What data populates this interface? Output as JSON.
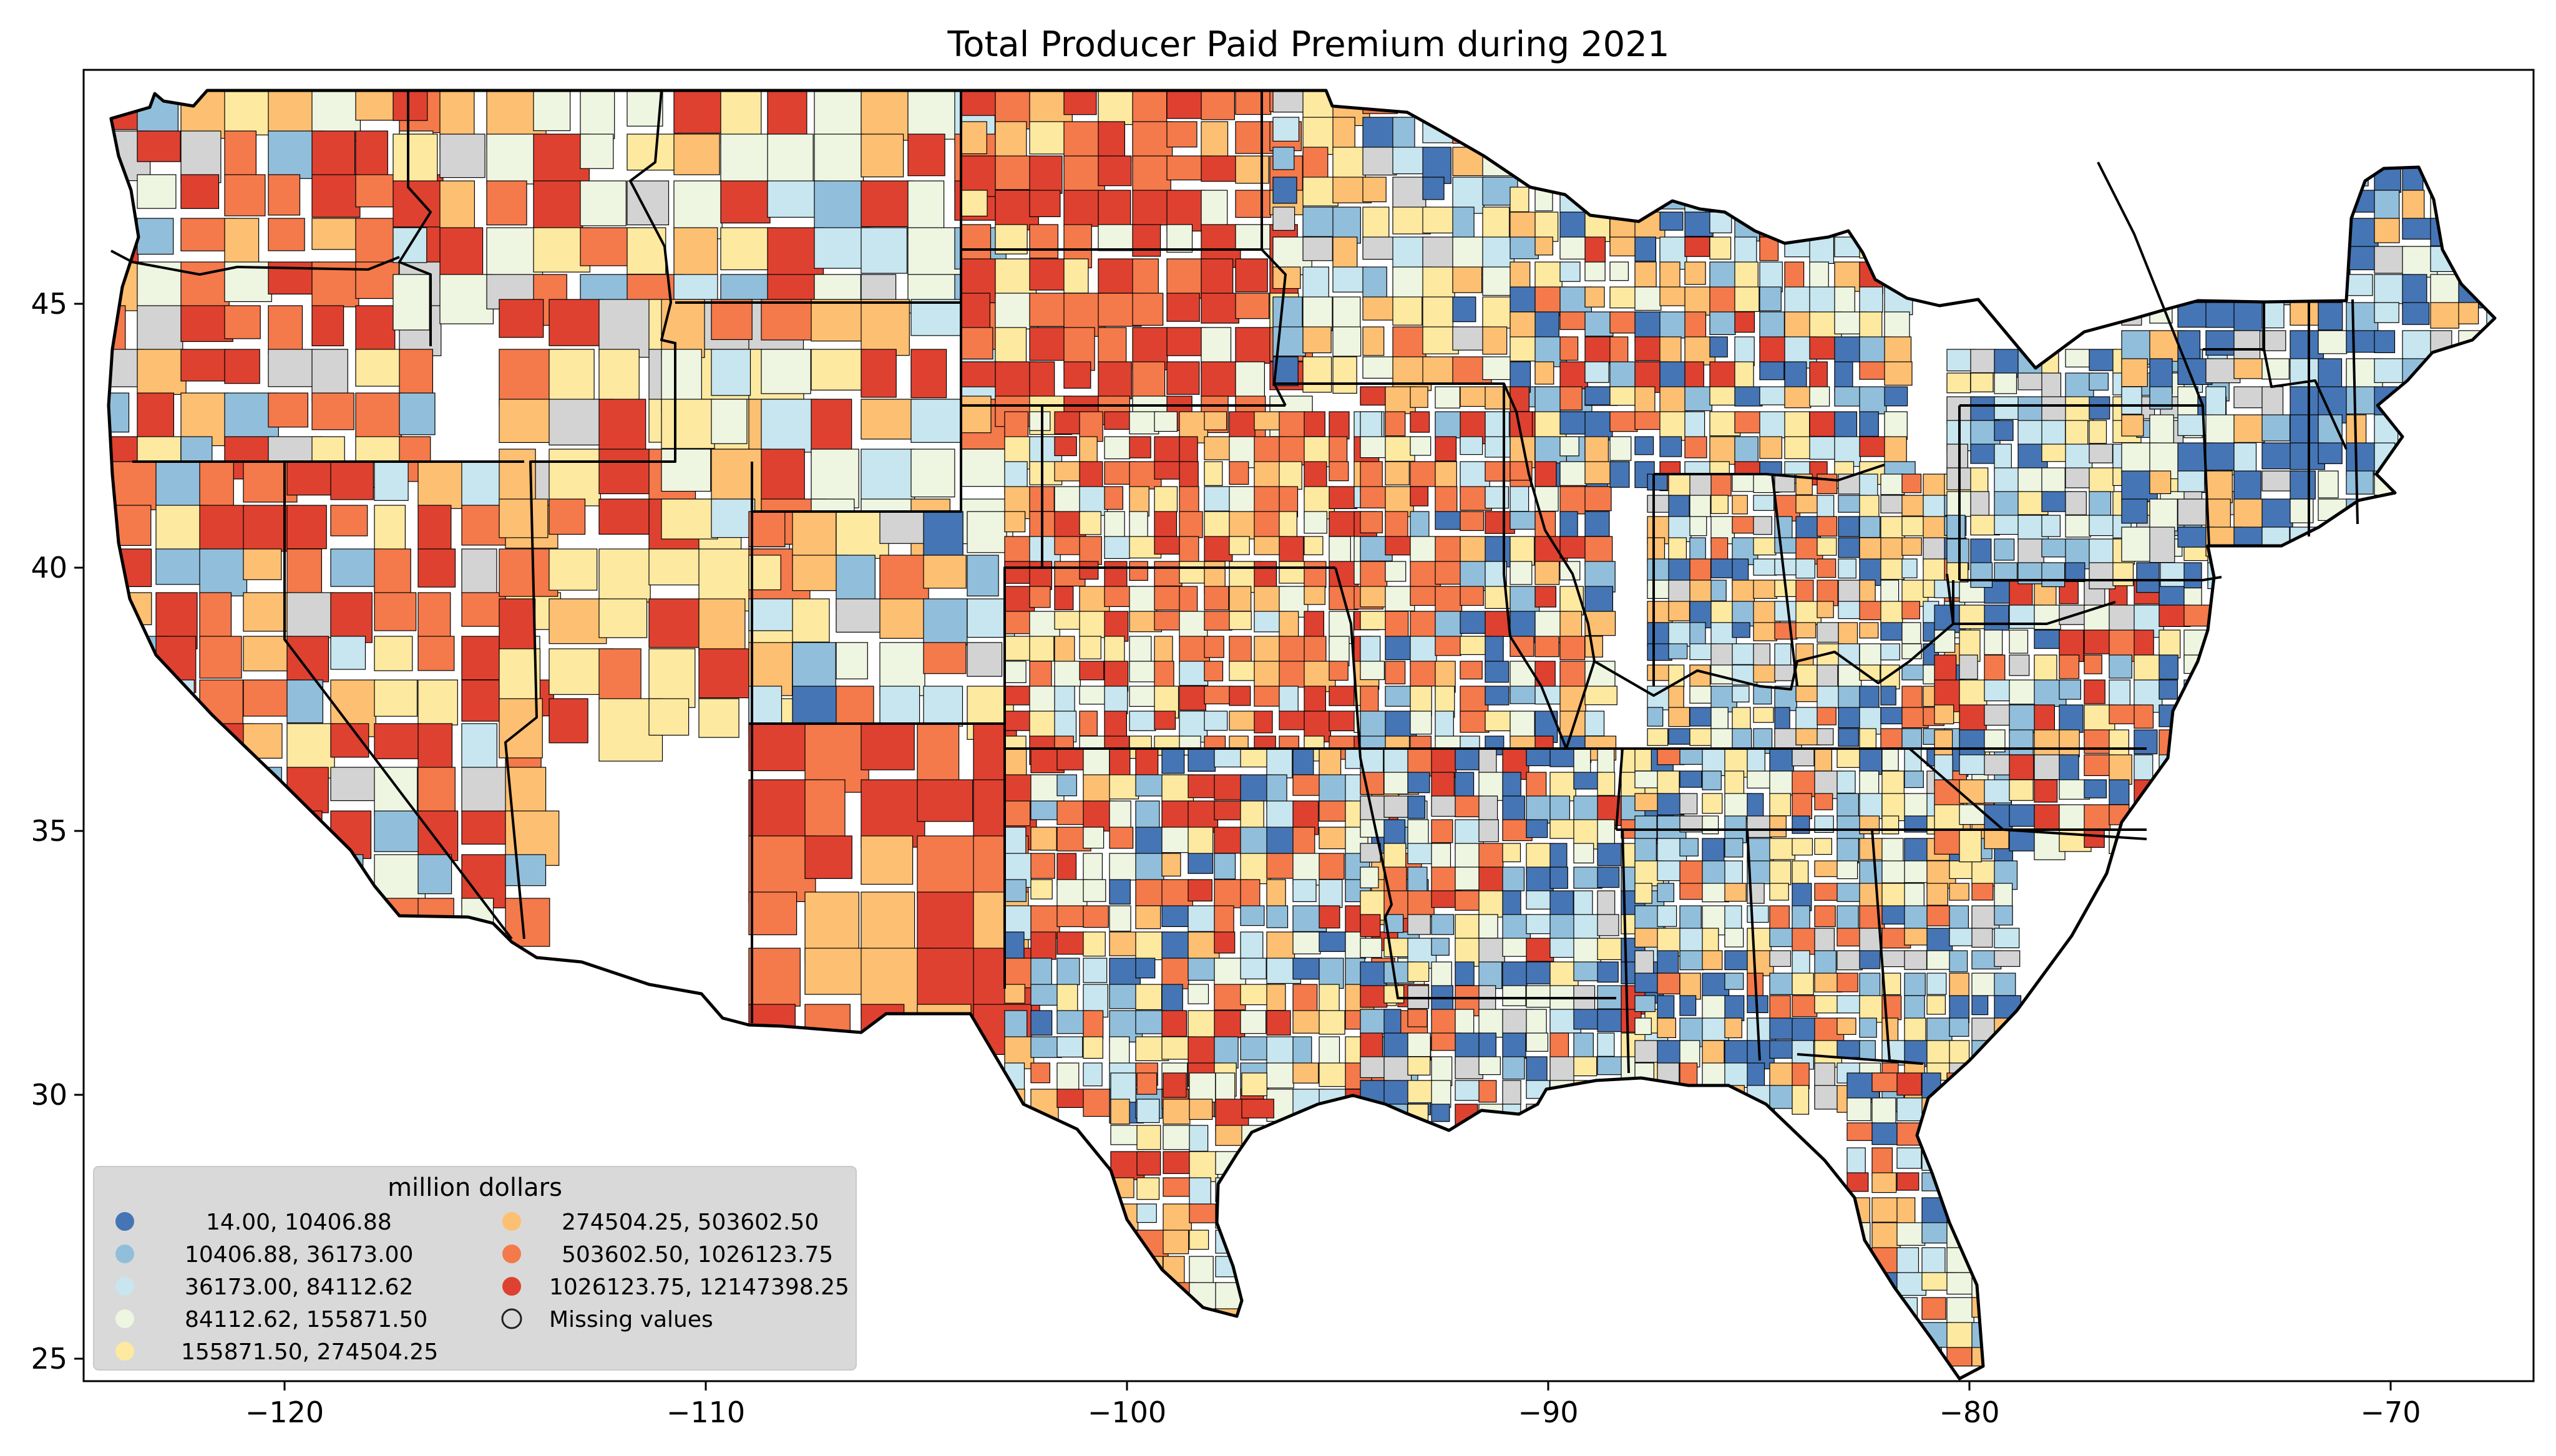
{
  "title": "Total Producer Paid Premium during 2021",
  "axes": {
    "x_ticks": [
      "−120",
      "−110",
      "−100",
      "−90",
      "−80",
      "−70"
    ],
    "y_ticks": [
      "45",
      "40",
      "35",
      "30",
      "25"
    ]
  },
  "legend": {
    "title": "million dollars",
    "placement": "lower-left",
    "items": [
      {
        "label": "14.00,    10406.88",
        "color": "#4575b4"
      },
      {
        "label": "10406.88,    36173.00",
        "color": "#91bfdb"
      },
      {
        "label": "36173.00,    84112.62",
        "color": "#c7e6f0"
      },
      {
        "label": "84112.62,    155871.50",
        "color": "#eef6e2"
      },
      {
        "label": "155871.50,    274504.25",
        "color": "#fee9a0"
      },
      {
        "label": "274504.25,    503602.50",
        "color": "#fdbf71"
      },
      {
        "label": "503602.50,   1026123.75",
        "color": "#f4794b"
      },
      {
        "label": "1026123.75, 12147398.25",
        "color": "#de4130"
      },
      {
        "label": "Missing values",
        "color": "#d3d3d3"
      }
    ]
  },
  "colors": {
    "missing": "#d3d3d3",
    "state_border": "#000000",
    "county_border": "#000000"
  }
}
